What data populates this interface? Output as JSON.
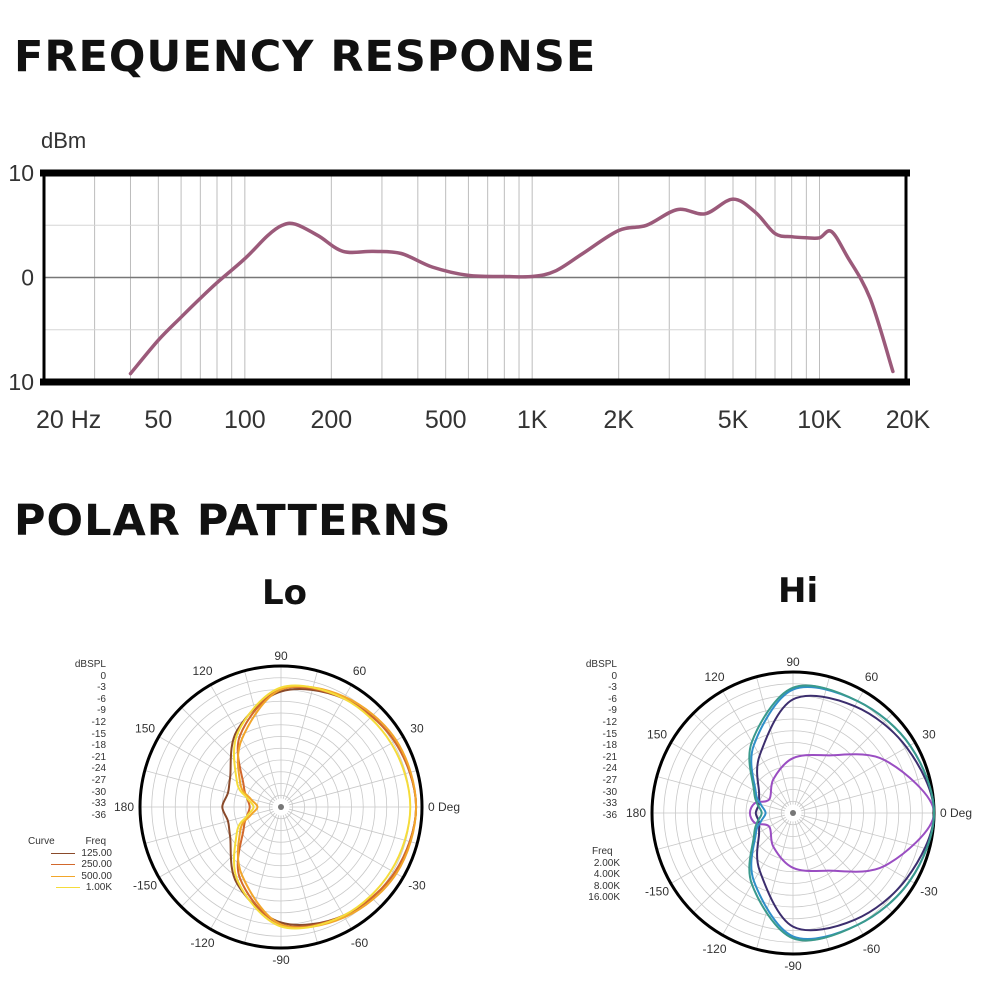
{
  "freq_title": "FREQUENCY RESPONSE",
  "polar_title": "POLAR PATTERNS",
  "colors": {
    "freq_curve": "#9b5a7a",
    "lo_125": "#8a4a2a",
    "lo_250": "#d2682c",
    "lo_500": "#f2a62a",
    "lo_1k": "#f5dc3a",
    "hi_2k": "#3c2e6e",
    "hi_4k": "#9a4ec2",
    "hi_8k": "#2f8fc8",
    "hi_16k": "#3a9a8c"
  },
  "chart_data": [
    {
      "type": "line",
      "ylabel": "dBm",
      "y_tick_labels": [
        "10",
        "0",
        "10"
      ],
      "ylim": [
        -10,
        10
      ],
      "x_scale": "log",
      "xlim": [
        20,
        20000
      ],
      "x_ticks": [
        {
          "value": 20,
          "label": "20 Hz"
        },
        {
          "value": 50,
          "label": "50"
        },
        {
          "value": 100,
          "label": "100"
        },
        {
          "value": 200,
          "label": "200"
        },
        {
          "value": 500,
          "label": "500"
        },
        {
          "value": 1000,
          "label": "1K"
        },
        {
          "value": 2000,
          "label": "2K"
        },
        {
          "value": 5000,
          "label": "5K"
        },
        {
          "value": 10000,
          "label": "10K"
        },
        {
          "value": 20000,
          "label": "20K"
        }
      ],
      "grid": true,
      "series": [
        {
          "x": [
            40,
            50,
            60,
            70,
            80,
            100,
            120,
            135,
            150,
            180,
            220,
            280,
            350,
            450,
            600,
            800,
            1000,
            1200,
            1500,
            2000,
            2500,
            3200,
            4000,
            5000,
            6000,
            7000,
            8000,
            9000,
            10000,
            11000,
            12500,
            15000,
            18000
          ],
          "y": [
            -9.2,
            -6.0,
            -3.8,
            -2.0,
            -0.5,
            1.8,
            4.0,
            5.0,
            5.1,
            4.0,
            2.5,
            2.5,
            2.3,
            1.0,
            0.2,
            0.1,
            0.1,
            0.6,
            2.3,
            4.5,
            5.0,
            6.5,
            6.1,
            7.5,
            6.2,
            4.2,
            3.9,
            3.8,
            3.8,
            4.4,
            2.0,
            -2.0,
            -9.0
          ]
        }
      ]
    },
    {
      "type": "polar",
      "title": "Lo",
      "rlabel": "dBSPL",
      "rlim": [
        -36,
        0
      ],
      "r_ticks": [
        "0",
        "-3",
        "-6",
        "-9",
        "-12",
        "-15",
        "-18",
        "-21",
        "-24",
        "-27",
        "-30",
        "-33",
        "-36"
      ],
      "angle_labels": [
        "0 Deg",
        "30",
        "60",
        "90",
        "120",
        "150",
        "180",
        "-150",
        "-120",
        "-90",
        "-60",
        "-30"
      ],
      "legend_header": [
        "Curve",
        "Freq"
      ],
      "series": [
        {
          "name": "125.00",
          "color": "#8a4a2a",
          "angles": [
            0,
            30,
            60,
            90,
            120,
            150,
            165,
            180,
            195,
            210,
            240,
            270,
            300,
            330
          ],
          "values": [
            -1.5,
            -2.5,
            -4.0,
            -6.5,
            -13.5,
            -21.0,
            -22.0,
            -21.0,
            -22.0,
            -21.0,
            -13.5,
            -6.5,
            -4.0,
            -2.5
          ]
        },
        {
          "name": "250.00",
          "color": "#d2682c",
          "angles": [
            0,
            30,
            60,
            90,
            120,
            150,
            165,
            180,
            195,
            210,
            240,
            270,
            300,
            330
          ],
          "values": [
            -1.5,
            -2.5,
            -4.0,
            -6.0,
            -15.0,
            -25.0,
            -27.0,
            -28.0,
            -27.0,
            -25.0,
            -15.0,
            -6.0,
            -4.0,
            -2.5
          ]
        },
        {
          "name": "500.00",
          "color": "#f2a62a",
          "angles": [
            0,
            30,
            60,
            90,
            120,
            150,
            165,
            180,
            195,
            210,
            240,
            270,
            300,
            330
          ],
          "values": [
            -1.5,
            -2.0,
            -3.5,
            -6.0,
            -16.0,
            -24.0,
            -28.0,
            -30.0,
            -28.0,
            -24.0,
            -16.0,
            -6.0,
            -3.5,
            -2.0
          ]
        },
        {
          "name": "1.00K",
          "color": "#f5dc3a",
          "angles": [
            0,
            30,
            60,
            90,
            120,
            150,
            165,
            180,
            195,
            210,
            240,
            270,
            300,
            330
          ],
          "values": [
            -3.0,
            -3.5,
            -4.0,
            -5.5,
            -14.0,
            -23.0,
            -27.0,
            -29.0,
            -27.0,
            -23.0,
            -14.0,
            -5.5,
            -4.0,
            -3.5
          ]
        }
      ]
    },
    {
      "type": "polar",
      "title": "Hi",
      "rlabel": "dBSPL",
      "rlim": [
        -36,
        0
      ],
      "r_ticks": [
        "0",
        "-3",
        "-6",
        "-9",
        "-12",
        "-15",
        "-18",
        "-21",
        "-24",
        "-27",
        "-30",
        "-33",
        "-36"
      ],
      "angle_labels": [
        "0 Deg",
        "30",
        "60",
        "90",
        "120",
        "150",
        "180",
        "-150",
        "-120",
        "-90",
        "-60",
        "-30"
      ],
      "legend_header": [
        "Freq"
      ],
      "series": [
        {
          "name": "2.00K",
          "color": "#3c2e6e",
          "angles": [
            0,
            30,
            60,
            90,
            120,
            150,
            165,
            180,
            195,
            210,
            240,
            270,
            300,
            330
          ],
          "values": [
            0,
            -2.5,
            -4.5,
            -7.0,
            -19.0,
            -26.0,
            -27.0,
            -26.5,
            -27.0,
            -26.0,
            -19.0,
            -7.0,
            -4.5,
            -2.5
          ]
        },
        {
          "name": "4.00K",
          "color": "#9a4ec2",
          "angles": [
            0,
            30,
            60,
            90,
            120,
            150,
            165,
            180,
            195,
            210,
            240,
            270,
            300,
            330
          ],
          "values": [
            0,
            -9.0,
            -19.0,
            -22.0,
            -26.0,
            -29.0,
            -26.0,
            -25.0,
            -26.0,
            -29.0,
            -26.0,
            -22.0,
            -19.0,
            -9.0
          ]
        },
        {
          "name": "8.00K",
          "color": "#2f8fc8",
          "angles": [
            0,
            30,
            60,
            90,
            120,
            150,
            165,
            180,
            195,
            210,
            240,
            270,
            300,
            330
          ],
          "values": [
            0,
            -1.5,
            -3.0,
            -4.5,
            -16.0,
            -25.0,
            -27.5,
            -29.0,
            -27.5,
            -25.0,
            -16.0,
            -4.5,
            -3.0,
            -1.5
          ]
        },
        {
          "name": "16.00K",
          "color": "#3a9a8c",
          "angles": [
            0,
            30,
            60,
            90,
            120,
            150,
            165,
            180,
            195,
            210,
            240,
            270,
            300,
            330
          ],
          "values": [
            0,
            -1.5,
            -3.0,
            -4.0,
            -15.0,
            -24.5,
            -26.5,
            -28.0,
            -26.5,
            -24.5,
            -15.0,
            -4.0,
            -3.0,
            -1.5
          ]
        }
      ]
    }
  ]
}
